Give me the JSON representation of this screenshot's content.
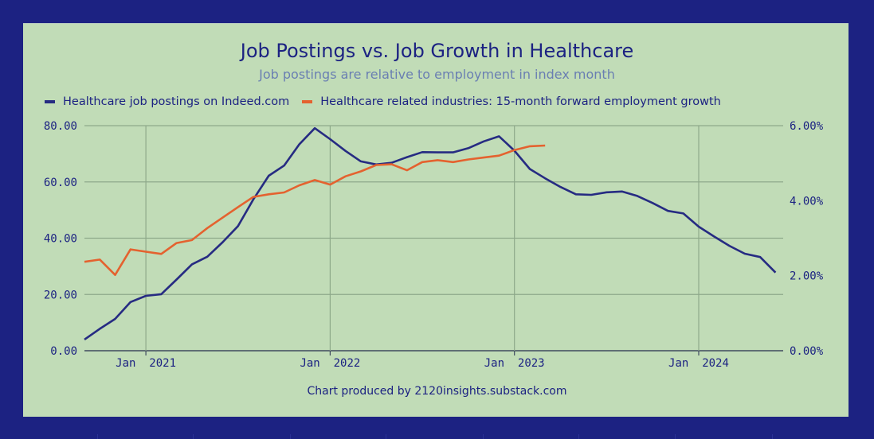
{
  "chart_data": {
    "type": "line",
    "title": "Job Postings vs. Job Growth in Healthcare",
    "subtitle": "Job postings are relative to employment in index month",
    "footer": "Chart produced by 2120insights.substack.com",
    "x_ticks": [
      "Jan  2021",
      "Jan  2022",
      "Jan  2023",
      "Jan  2024"
    ],
    "y_left": {
      "ticks": [
        "0.00",
        "20.00",
        "40.00",
        "60.00",
        "80.00"
      ],
      "range": [
        0,
        80
      ]
    },
    "y_right": {
      "ticks": [
        "0.00%",
        "2.00%",
        "4.00%",
        "6.00%"
      ],
      "range": [
        0,
        6
      ]
    },
    "grid": true,
    "legend_position": "top-left",
    "series": [
      {
        "name": "Healthcare job postings on Indeed.com",
        "axis": "left",
        "color": "#262b82",
        "points": [
          [
            "2020-09",
            4
          ],
          [
            "2020-10",
            7.8
          ],
          [
            "2020-11",
            11.3
          ],
          [
            "2020-12",
            17.3
          ],
          [
            "2021-01",
            19.5
          ],
          [
            "2021-02",
            20.1
          ],
          [
            "2021-03",
            25.3
          ],
          [
            "2021-04",
            30.7
          ],
          [
            "2021-05",
            33.4
          ],
          [
            "2021-06",
            38.6
          ],
          [
            "2021-07",
            44.3
          ],
          [
            "2021-08",
            53.8
          ],
          [
            "2021-09",
            62.2
          ],
          [
            "2021-10",
            65.8
          ],
          [
            "2021-11",
            73.4
          ],
          [
            "2021-12",
            79.1
          ],
          [
            "2022-01",
            75.2
          ],
          [
            "2022-02",
            71
          ],
          [
            "2022-03",
            67.3
          ],
          [
            "2022-04",
            66.2
          ],
          [
            "2022-05",
            66.8
          ],
          [
            "2022-06",
            68.8
          ],
          [
            "2022-07",
            70.6
          ],
          [
            "2022-08",
            70.5
          ],
          [
            "2022-09",
            70.5
          ],
          [
            "2022-10",
            72
          ],
          [
            "2022-11",
            74.4
          ],
          [
            "2022-12",
            76.2
          ],
          [
            "2023-01",
            71.1
          ],
          [
            "2023-02",
            64.6
          ],
          [
            "2023-03",
            61.3
          ],
          [
            "2023-04",
            58.2
          ],
          [
            "2023-05",
            55.6
          ],
          [
            "2023-06",
            55.4
          ],
          [
            "2023-07",
            56.3
          ],
          [
            "2023-08",
            56.6
          ],
          [
            "2023-09",
            55
          ],
          [
            "2023-10",
            52.5
          ],
          [
            "2023-11",
            49.7
          ],
          [
            "2023-12",
            48.8
          ],
          [
            "2024-01",
            44.1
          ],
          [
            "2024-02",
            40.6
          ],
          [
            "2024-03",
            37.3
          ],
          [
            "2024-04",
            34.5
          ],
          [
            "2024-05",
            33.3
          ],
          [
            "2024-06",
            27.8
          ]
        ]
      },
      {
        "name": "Healthcare related industries: 15-month forward employment growth",
        "axis": "right",
        "color": "#e4622f",
        "points": [
          [
            "2020-09",
            2.37
          ],
          [
            "2020-10",
            2.43
          ],
          [
            "2020-11",
            2.02
          ],
          [
            "2020-12",
            2.7
          ],
          [
            "2021-01",
            2.64
          ],
          [
            "2021-02",
            2.58
          ],
          [
            "2021-03",
            2.87
          ],
          [
            "2021-04",
            2.95
          ],
          [
            "2021-05",
            3.27
          ],
          [
            "2021-06",
            3.55
          ],
          [
            "2021-07",
            3.83
          ],
          [
            "2021-08",
            4.1
          ],
          [
            "2021-09",
            4.17
          ],
          [
            "2021-10",
            4.22
          ],
          [
            "2021-11",
            4.41
          ],
          [
            "2021-12",
            4.55
          ],
          [
            "2022-01",
            4.43
          ],
          [
            "2022-02",
            4.65
          ],
          [
            "2022-03",
            4.78
          ],
          [
            "2022-04",
            4.95
          ],
          [
            "2022-05",
            4.97
          ],
          [
            "2022-06",
            4.81
          ],
          [
            "2022-07",
            5.03
          ],
          [
            "2022-08",
            5.08
          ],
          [
            "2022-09",
            5.03
          ],
          [
            "2022-10",
            5.1
          ],
          [
            "2022-11",
            5.15
          ],
          [
            "2022-12",
            5.2
          ],
          [
            "2023-01",
            5.35
          ],
          [
            "2023-02",
            5.45
          ],
          [
            "2023-03",
            5.47
          ]
        ]
      }
    ]
  }
}
